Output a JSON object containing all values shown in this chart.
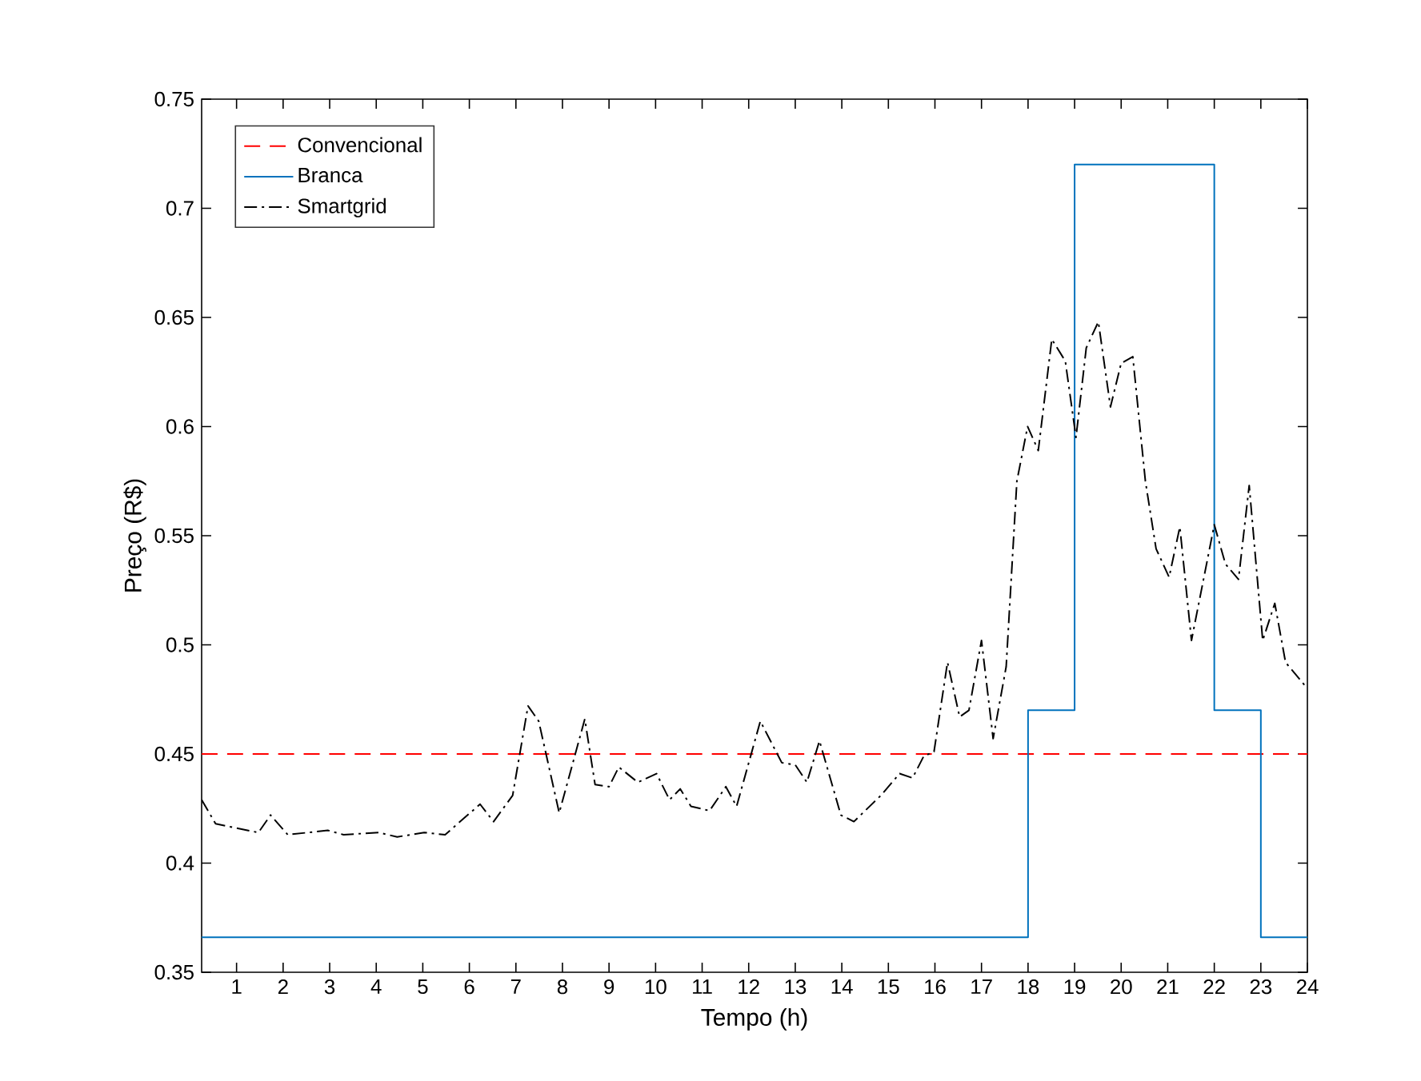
{
  "chart_data": {
    "type": "line",
    "xlabel": "Tempo (h)",
    "ylabel": "Preço (R$)",
    "xlim": [
      0.25,
      24
    ],
    "xticks": [
      1,
      2,
      3,
      4,
      5,
      6,
      7,
      8,
      9,
      10,
      11,
      12,
      13,
      14,
      15,
      16,
      17,
      18,
      19,
      20,
      21,
      22,
      23,
      24
    ],
    "ylim": [
      0.35,
      0.75
    ],
    "yticks": [
      0.35,
      0.4,
      0.45,
      0.5,
      0.55,
      0.6,
      0.65,
      0.7,
      0.75
    ],
    "legend": "top left",
    "grid": false,
    "marker": "none",
    "series": [
      {
        "name": "Convencional",
        "line_style": "dashed",
        "color": "#ff0000",
        "x": [
          0.25,
          24
        ],
        "values": [
          0.45,
          0.45
        ]
      },
      {
        "name": "Branca",
        "type": "step",
        "line_style": "solid",
        "color": "#0072bd",
        "x": [
          0.25,
          18,
          19,
          22,
          23,
          24
        ],
        "values": [
          0.366,
          0.47,
          0.72,
          0.47,
          0.366,
          0.366
        ]
      },
      {
        "name": "Smartgrid",
        "line_style": "dashdot",
        "color": "#000000",
        "x": [
          0.25,
          0.55,
          1.47,
          1.73,
          2.1,
          2.96,
          3.3,
          4.05,
          4.45,
          5.03,
          5.48,
          6.23,
          6.52,
          6.93,
          7.26,
          7.49,
          7.93,
          8.48,
          8.7,
          9.0,
          9.21,
          9.62,
          10.02,
          10.3,
          10.53,
          10.76,
          11.16,
          11.51,
          11.74,
          12.25,
          12.71,
          13.0,
          13.25,
          13.52,
          13.98,
          14.26,
          14.84,
          15.24,
          15.52,
          15.76,
          15.98,
          16.27,
          16.53,
          16.73,
          17.0,
          17.25,
          17.53,
          17.76,
          17.99,
          18.22,
          18.51,
          18.8,
          19.03,
          19.25,
          19.51,
          19.77,
          20.0,
          20.25,
          20.52,
          20.75,
          21.03,
          21.26,
          21.51,
          22.0,
          22.24,
          22.52,
          22.75,
          23.04,
          23.3,
          23.53,
          23.96,
          24
        ],
        "values": [
          0.429,
          0.418,
          0.414,
          0.422,
          0.413,
          0.415,
          0.413,
          0.414,
          0.412,
          0.414,
          0.413,
          0.427,
          0.419,
          0.431,
          0.472,
          0.465,
          0.423,
          0.466,
          0.436,
          0.435,
          0.444,
          0.437,
          0.441,
          0.429,
          0.434,
          0.426,
          0.424,
          0.435,
          0.426,
          0.465,
          0.446,
          0.445,
          0.437,
          0.456,
          0.422,
          0.419,
          0.431,
          0.441,
          0.439,
          0.449,
          0.451,
          0.492,
          0.467,
          0.47,
          0.502,
          0.457,
          0.49,
          0.575,
          0.6,
          0.589,
          0.64,
          0.63,
          0.595,
          0.636,
          0.648,
          0.609,
          0.629,
          0.632,
          0.575,
          0.544,
          0.531,
          0.554,
          0.502,
          0.555,
          0.537,
          0.53,
          0.573,
          0.502,
          0.519,
          0.492,
          0.481,
          0.48
        ]
      }
    ]
  }
}
